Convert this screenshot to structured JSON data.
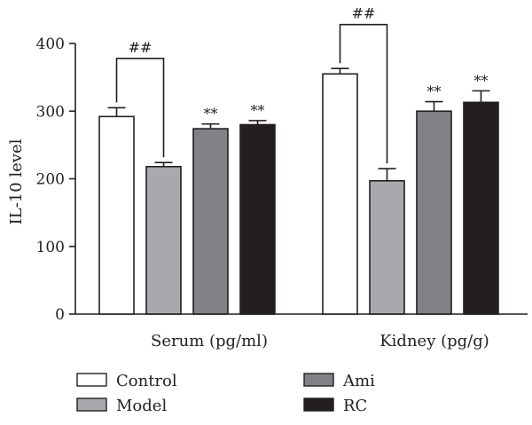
{
  "chart_data": {
    "type": "bar",
    "ylabel": "IL-10 level",
    "ylim": [
      0,
      400
    ],
    "yticks": [
      "0",
      "100",
      "200",
      "300",
      "400"
    ],
    "categories": [
      "Serum (pg/ml)",
      "Kidney (pg/g)"
    ],
    "series": [
      {
        "name": "Control",
        "values": [
          292,
          355
        ],
        "errors": [
          13,
          8
        ],
        "color": "#ffffff",
        "annotations": [
          "",
          ""
        ]
      },
      {
        "name": "Model",
        "values": [
          218,
          197
        ],
        "errors": [
          6,
          18
        ],
        "color": "#a7a9ac",
        "annotations": [
          "",
          ""
        ]
      },
      {
        "name": "Ami",
        "values": [
          274,
          300
        ],
        "errors": [
          7,
          14
        ],
        "color": "#808285",
        "annotations": [
          "**",
          "**"
        ]
      },
      {
        "name": "RC",
        "values": [
          280,
          313
        ],
        "errors": [
          6,
          17
        ],
        "color": "#231f20",
        "annotations": [
          "**",
          "**"
        ]
      }
    ],
    "comparisons": [
      {
        "category": 0,
        "from": "Control",
        "to": "Model",
        "label": "##",
        "bracket_level": 378
      },
      {
        "category": 1,
        "from": "Control",
        "to": "Model",
        "label": "##",
        "bracket_level": 428
      }
    ],
    "legend": "bottom"
  }
}
